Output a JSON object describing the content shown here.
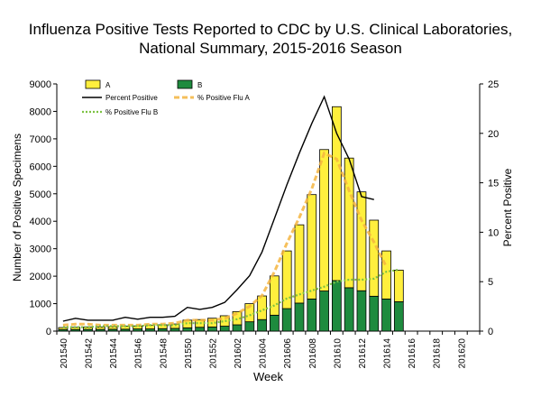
{
  "chart_data": {
    "type": "bar+line",
    "title_line1": "Influenza Positive Tests Reported to CDC by U.S. Clinical Laboratories,",
    "title_line2": "National Summary, 2015-2016 Season",
    "xlabel": "Week",
    "ylabel_left": "Number of Positive Specimens",
    "ylabel_right": "Percent Positive",
    "ylim_left": [
      0,
      9000
    ],
    "ylim_right": [
      0,
      25
    ],
    "yticks_left": [
      "0",
      "1000",
      "2000",
      "3000",
      "4000",
      "5000",
      "6000",
      "7000",
      "8000",
      "9000"
    ],
    "yticks_right": [
      "0",
      "5",
      "10",
      "15",
      "20",
      "25"
    ],
    "weeks": [
      "201540",
      "201541",
      "201542",
      "201543",
      "201544",
      "201545",
      "201546",
      "201547",
      "201548",
      "201549",
      "201550",
      "201551",
      "201552",
      "201601",
      "201602",
      "201603",
      "201604",
      "201605",
      "201606",
      "201607",
      "201608",
      "201609",
      "201610",
      "201611",
      "201612",
      "201613",
      "201614",
      "201615",
      "201616",
      "201617",
      "201618",
      "201619",
      "201620",
      "201621"
    ],
    "xtick_labels": [
      "201540",
      "201542",
      "201544",
      "201546",
      "201548",
      "201550",
      "201552",
      "201602",
      "201604",
      "201606",
      "201608",
      "201610",
      "201612",
      "201614",
      "201616",
      "201618",
      "201620"
    ],
    "series_bars": [
      {
        "name": "A",
        "color": "#FFEF3D",
        "values": [
          70,
          80,
          85,
          85,
          90,
          110,
          110,
          130,
          140,
          160,
          280,
          280,
          320,
          380,
          480,
          660,
          860,
          1430,
          2100,
          2850,
          3800,
          5150,
          6330,
          4720,
          3600,
          2770,
          1750,
          1150,
          null,
          null,
          null,
          null,
          null,
          null
        ]
      },
      {
        "name": "B",
        "color": "#1E8B3E",
        "values": [
          60,
          60,
          65,
          65,
          70,
          70,
          80,
          80,
          90,
          100,
          120,
          140,
          150,
          180,
          230,
          340,
          420,
          580,
          820,
          1020,
          1170,
          1460,
          1840,
          1580,
          1470,
          1270,
          1170,
          1070,
          null,
          null,
          null,
          null,
          null,
          null
        ]
      }
    ],
    "series_lines": [
      {
        "name": "Percent Positive",
        "color": "#000000",
        "style": "solid",
        "values": [
          1.0,
          1.3,
          1.1,
          1.1,
          1.1,
          1.4,
          1.2,
          1.4,
          1.4,
          1.5,
          2.4,
          2.2,
          2.4,
          2.9,
          4.2,
          5.6,
          8.0,
          11.4,
          14.8,
          18.0,
          21.0,
          23.7,
          20.0,
          17.4,
          13.6,
          13.3,
          null,
          null,
          null,
          null,
          null,
          null,
          null,
          null
        ]
      },
      {
        "name": "% Positive Flu A",
        "color": "#F4B53F",
        "style": "dashed",
        "values": [
          0.6,
          0.7,
          0.7,
          0.6,
          0.6,
          0.6,
          0.6,
          0.7,
          0.7,
          0.8,
          1.1,
          1.1,
          1.1,
          1.3,
          1.8,
          2.5,
          3.6,
          6.0,
          8.9,
          11.5,
          14.4,
          18.0,
          17.4,
          14.2,
          11.2,
          9.0,
          6.5,
          null,
          null,
          null,
          null,
          null,
          null,
          null
        ]
      },
      {
        "name": "% Positive Flu B",
        "color": "#7CC242",
        "style": "dotted",
        "values": [
          0.4,
          0.4,
          0.4,
          0.5,
          0.5,
          0.5,
          0.5,
          0.6,
          0.6,
          0.6,
          0.8,
          0.8,
          0.8,
          1.0,
          1.2,
          1.6,
          2.1,
          2.6,
          3.3,
          3.7,
          4.1,
          4.5,
          5.0,
          5.2,
          5.2,
          5.3,
          6.0,
          6.2,
          null,
          null,
          null,
          null,
          null,
          null
        ]
      }
    ],
    "legend": [
      "A",
      "B",
      "Percent Positive",
      "% Positive Flu A",
      "% Positive Flu B"
    ],
    "legend_position": "top-left"
  }
}
